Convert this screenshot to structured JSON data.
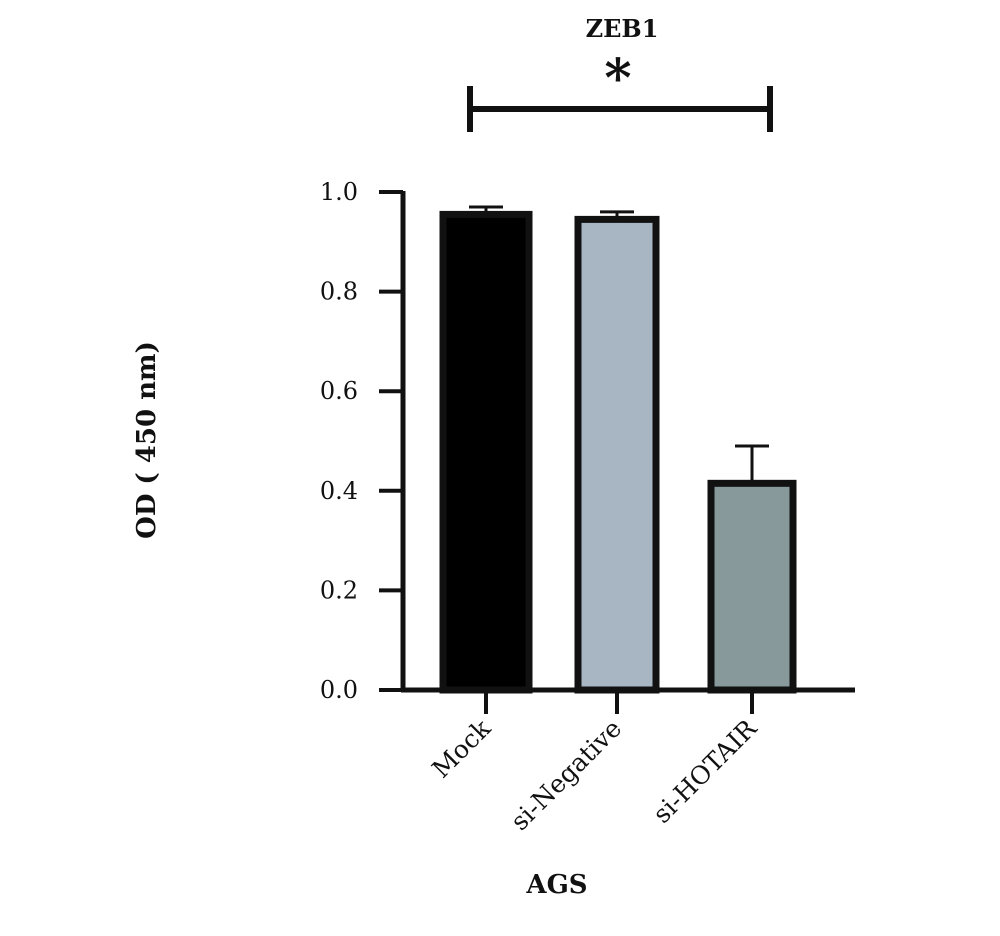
{
  "chart_data": {
    "type": "bar",
    "title": "ZEB1",
    "xlabel": "AGS",
    "ylabel": "OD ( 450 nm)",
    "categories": [
      "Mock",
      "si-Negative",
      "si-HOTAIR"
    ],
    "values": [
      0.955,
      0.945,
      0.415
    ],
    "errors": [
      0.015,
      0.015,
      0.075
    ],
    "colors": [
      "#000000",
      "#a8b5c2",
      "#87999a"
    ],
    "ylim": [
      0,
      1.0
    ],
    "yticks": [
      0.0,
      0.2,
      0.4,
      0.6,
      0.8,
      1.0
    ],
    "ytick_labels": [
      "0.0",
      "0.2",
      "0.4",
      "0.6",
      "0.8",
      "1.0"
    ],
    "significance": {
      "from": "Mock",
      "to": "si-HOTAIR",
      "label": "*"
    },
    "grid": false,
    "legend": "none"
  }
}
